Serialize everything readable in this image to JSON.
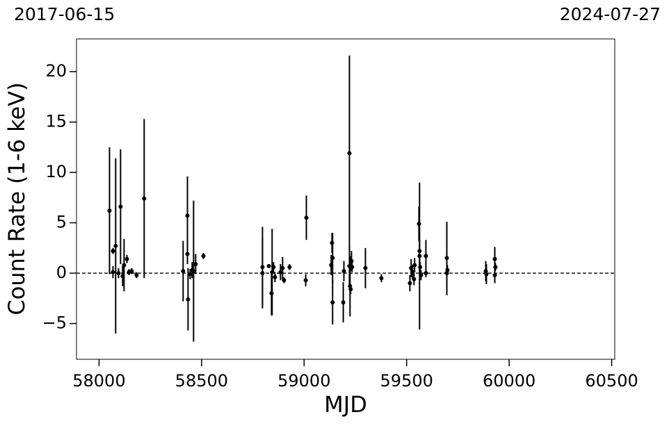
{
  "chart_data": {
    "type": "scatter",
    "corner_labels": [
      "2017-06-15",
      "2024-07-27"
    ],
    "xlabel": "MJD",
    "ylabel": "Count Rate (1-6 keV)",
    "xlim": [
      57890,
      60515
    ],
    "ylim": [
      -8.55,
      23.25
    ],
    "xticks": [
      58000,
      58500,
      59000,
      59500,
      60000,
      60500
    ],
    "yticks": [
      {
        "value": -5,
        "label": "−5"
      },
      0,
      5,
      10,
      15,
      20
    ],
    "hline": 0,
    "series": [
      {
        "color": "#000000",
        "x": [
          58051,
          58068,
          58068,
          58081,
          58095,
          58105,
          58115,
          58122,
          58136,
          58146,
          58159,
          58183,
          58220,
          58410,
          58431,
          58434,
          58431,
          58444,
          58454,
          58461,
          58471,
          58509,
          58797,
          58797,
          58828,
          58841,
          58844,
          58851,
          58858,
          58885,
          58895,
          58902,
          58929,
          59011,
          59008,
          59136,
          59139,
          59139,
          59132,
          59191,
          59194,
          59221,
          59221,
          59224,
          59227,
          59231,
          59234,
          59299,
          59377,
          59516,
          59522,
          59529,
          59536,
          59539,
          59560,
          59563,
          59563,
          59566,
          59570,
          59594,
          59594,
          59696,
          59696,
          59699,
          59886,
          59889,
          59930,
          59930,
          59933
        ],
        "values": [
          6.2,
          2.2,
          0.1,
          2.7,
          0,
          6.6,
          -0.3,
          0.8,
          1.4,
          0.1,
          0.2,
          -0.2,
          7.4,
          0.2,
          5.7,
          -2.6,
          1.9,
          -0.1,
          0.3,
          0.2,
          0.9,
          1.7,
          0.6,
          0,
          0.7,
          -2,
          0.1,
          0.6,
          -0.4,
          0.1,
          0.5,
          -0.7,
          0.6,
          5.5,
          -0.7,
          3,
          -2.9,
          1.5,
          0.8,
          -2.9,
          0.2,
          11.9,
          0.7,
          -1.3,
          -1.6,
          1.2,
          0.6,
          0.5,
          -0.5,
          -1,
          0.5,
          0.1,
          -0.6,
          0.8,
          4.9,
          1.7,
          2.2,
          0.6,
          -0.2,
          1.7,
          0,
          1.5,
          0,
          0.3,
          0.2,
          -0.1,
          1.4,
          -0.2,
          0.6
        ],
        "errors": [
          6.3,
          0.3,
          0.6,
          8.7,
          0.5,
          5.7,
          1,
          2.6,
          0.4,
          0.3,
          0.3,
          0.3,
          7.9,
          3,
          3.9,
          3.1,
          1,
          0.5,
          0.8,
          7,
          1,
          0.3,
          4,
          3.5,
          0.2,
          2.2,
          4.3,
          0.5,
          0.5,
          0.8,
          1.1,
          0.3,
          0.3,
          2.2,
          0.6,
          1,
          2.2,
          2.5,
          1,
          2,
          1,
          9.7,
          2,
          3,
          0.5,
          1,
          0.5,
          2,
          0.4,
          0.8,
          0.9,
          0.7,
          0.6,
          0.7,
          1.7,
          7.3,
          1.2,
          0.5,
          0.5,
          1.6,
          0.4,
          3.6,
          2.2,
          0.5,
          1,
          1,
          1.2,
          0.8,
          0.4
        ]
      }
    ]
  }
}
